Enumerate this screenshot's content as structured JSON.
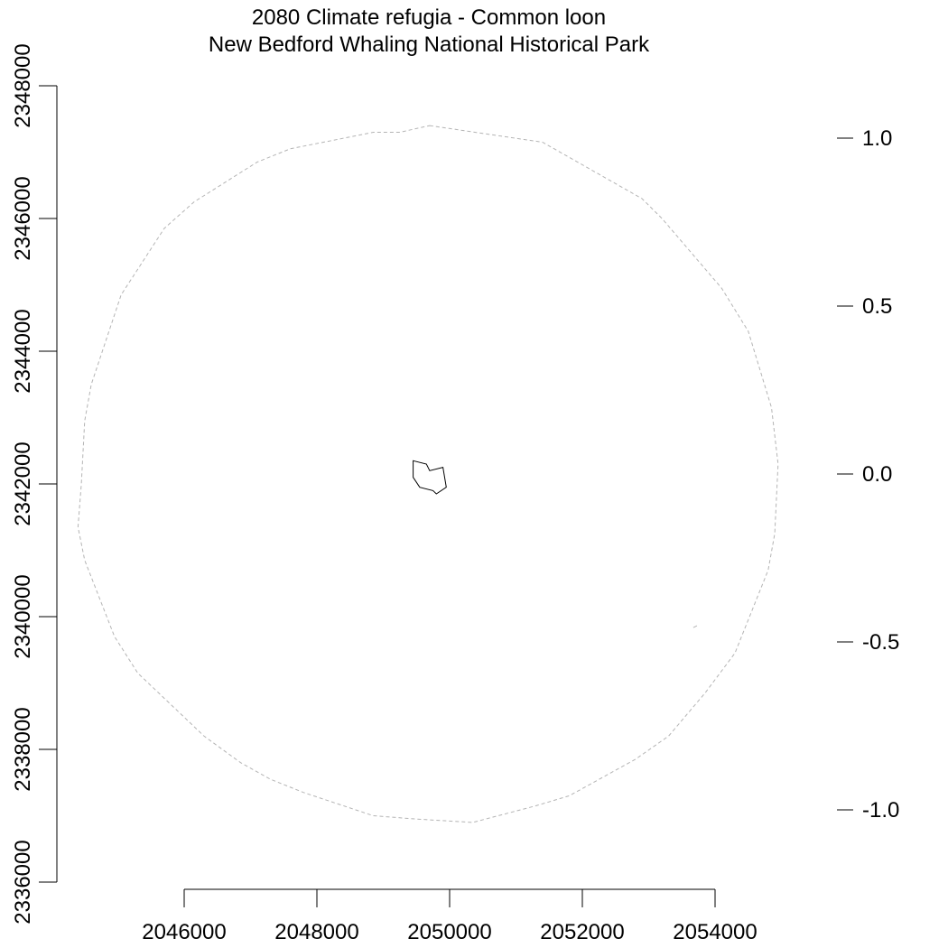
{
  "map": {
    "title": "2080 Climate refugia - Common loon",
    "subtitle": "New Bedford Whaling National Historical Park",
    "x_axis": {
      "range": [
        2044000,
        2056000
      ],
      "ticks": [
        "2046000",
        "2048000",
        "2050000",
        "2052000",
        "2054000"
      ],
      "tick_values": [
        2046000,
        2048000,
        2050000,
        2052000,
        2054000
      ]
    },
    "y_axis": {
      "range": [
        2336000,
        2348000
      ],
      "ticks": [
        "2336000",
        "2338000",
        "2340000",
        "2342000",
        "2344000",
        "2346000",
        "2348000"
      ],
      "tick_values": [
        2336000,
        2338000,
        2340000,
        2342000,
        2344000,
        2346000,
        2348000
      ]
    },
    "legend_scale": {
      "ticks": [
        "1.0",
        "0.5",
        "0.0",
        "-0.5",
        "-1.0"
      ],
      "tick_values": [
        1.0,
        0.5,
        0.0,
        -0.5,
        -1.0
      ]
    },
    "buffer_outline": {
      "style": "dashed",
      "color": "#b4b4b4",
      "points": [
        [
          2049700,
          2347400
        ],
        [
          2051400,
          2347150
        ],
        [
          2052900,
          2346300
        ],
        [
          2053200,
          2346000
        ],
        [
          2054100,
          2344950
        ],
        [
          2054500,
          2344300
        ],
        [
          2054850,
          2343150
        ],
        [
          2054950,
          2342300
        ],
        [
          2054900,
          2341250
        ],
        [
          2054800,
          2340700
        ],
        [
          2054300,
          2339450
        ],
        [
          2053850,
          2338850
        ],
        [
          2053300,
          2338200
        ],
        [
          2052800,
          2337850
        ],
        [
          2051800,
          2337300
        ],
        [
          2051300,
          2337150
        ],
        [
          2050350,
          2336900
        ],
        [
          2049500,
          2336950
        ],
        [
          2048850,
          2337000
        ],
        [
          2047800,
          2337350
        ],
        [
          2047300,
          2337550
        ],
        [
          2046850,
          2337800
        ],
        [
          2046300,
          2338200
        ],
        [
          2045300,
          2339150
        ],
        [
          2044950,
          2339700
        ],
        [
          2044500,
          2340850
        ],
        [
          2044400,
          2341350
        ],
        [
          2044450,
          2342000
        ],
        [
          2044500,
          2342950
        ],
        [
          2044600,
          2343500
        ],
        [
          2045050,
          2344850
        ],
        [
          2045700,
          2345850
        ],
        [
          2046150,
          2346250
        ],
        [
          2047100,
          2346850
        ],
        [
          2047600,
          2347050
        ],
        [
          2048850,
          2347300
        ],
        [
          2049250,
          2347300
        ]
      ]
    },
    "park_boundary": {
      "color": "#000000",
      "points": [
        [
          2049450,
          2342350
        ],
        [
          2049650,
          2342300
        ],
        [
          2049700,
          2342200
        ],
        [
          2049900,
          2342250
        ],
        [
          2049950,
          2341950
        ],
        [
          2049800,
          2341850
        ],
        [
          2049750,
          2341900
        ],
        [
          2049550,
          2341950
        ],
        [
          2049450,
          2342100
        ]
      ]
    },
    "small_feature": {
      "color": "#b4b4b4",
      "point": [
        2053700,
        2339850
      ]
    }
  }
}
